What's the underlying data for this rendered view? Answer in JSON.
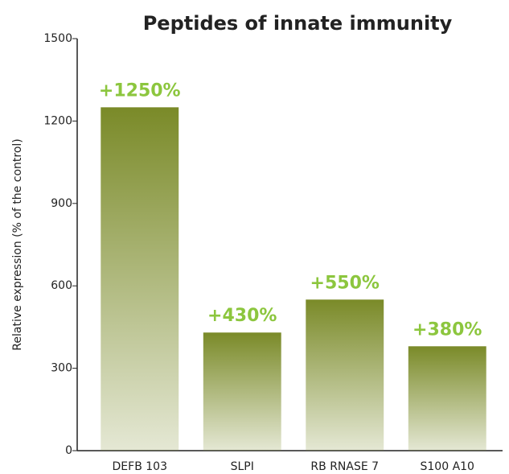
{
  "chart_data": {
    "type": "bar",
    "title": "Peptides of innate immunity",
    "y_label": "Relative expression (% of the control)",
    "categories": [
      "DEFB 103",
      "SLPI",
      "RB RNASE 7",
      "S100 A10"
    ],
    "values": [
      1250,
      430,
      550,
      380
    ],
    "value_labels": [
      "+1250%",
      "+430%",
      "+550%",
      "+380%"
    ],
    "color": "#7a8a28",
    "ylim": [
      0,
      1500
    ],
    "yticks": [
      0,
      300,
      600,
      900,
      1200,
      1500
    ],
    "grid": false
  }
}
